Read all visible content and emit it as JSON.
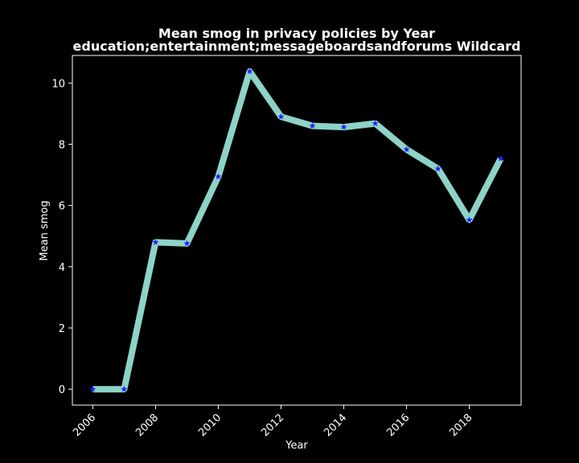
{
  "chart_data": {
    "type": "line",
    "title": "Mean smog in privacy policies by Year",
    "subtitle": "education;entertainment;messageboardsandforums Wildcard",
    "xlabel": "Year",
    "ylabel": "Mean smog",
    "x": [
      2006,
      2007,
      2008,
      2009,
      2010,
      2011,
      2012,
      2013,
      2014,
      2015,
      2016,
      2017,
      2018,
      2019
    ],
    "series": [
      {
        "values": [
          0.0,
          0.0,
          4.8,
          4.76,
          6.94,
          10.38,
          8.9,
          8.6,
          8.56,
          8.68,
          7.83,
          7.2,
          5.53,
          7.53
        ]
      }
    ],
    "xticks": [
      2006,
      2008,
      2010,
      2012,
      2014,
      2016,
      2018
    ],
    "yticks": [
      0,
      2,
      4,
      6,
      8,
      10
    ],
    "xlim": [
      2005.35,
      2019.65
    ],
    "ylim": [
      -0.52,
      10.9
    ],
    "grid": false,
    "legend": "none",
    "colors": {
      "background": "#000000",
      "line": "#8dd3c7",
      "marker": "#1f1fff",
      "axes": "#ffffff",
      "text": "#ffffff"
    },
    "marker": "star"
  }
}
